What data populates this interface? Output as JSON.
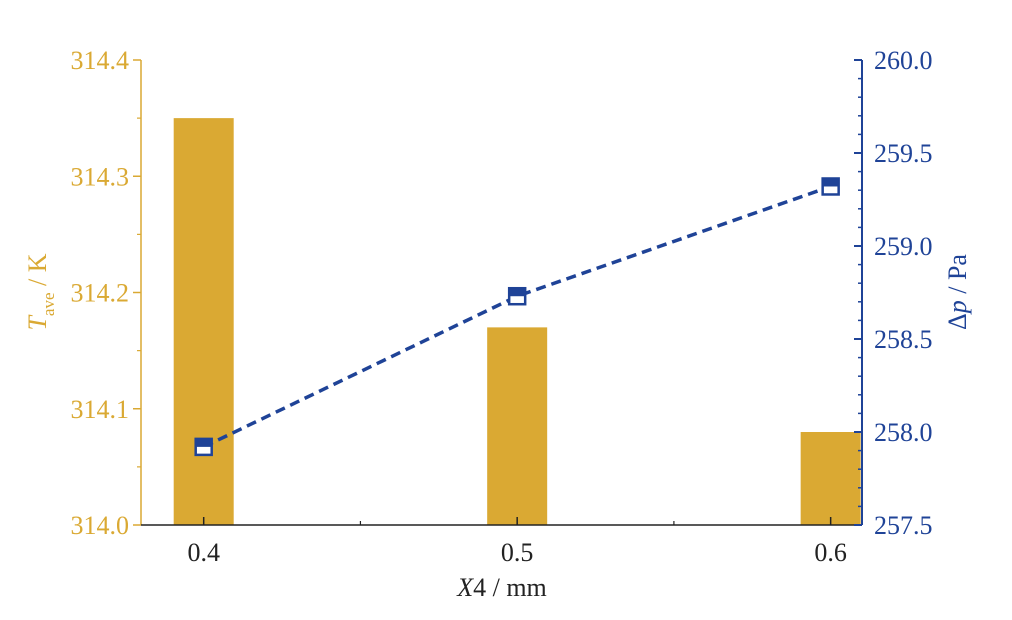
{
  "chart_data": {
    "type": "bar+line",
    "categories": [
      "0.4",
      "0.5",
      "0.6"
    ],
    "x": [
      0.4,
      0.5,
      0.6
    ],
    "bars": {
      "values": [
        314.35,
        314.17,
        314.08
      ],
      "color": "#DAA933",
      "axis": "left"
    },
    "line": {
      "values": [
        257.92,
        258.73,
        259.32
      ],
      "color": "#1F4397",
      "style": "dashed",
      "marker": "half-filled-square",
      "axis": "right"
    },
    "xlabel_var": "X",
    "xlabel_rest": "4 / mm",
    "xlim": [
      0.38,
      0.61
    ],
    "y_left": {
      "label_var": "T",
      "label_sub": "ave",
      "label_rest": " / K",
      "lim": [
        314.0,
        314.4
      ],
      "ticks": [
        "314.0",
        "314.1",
        "314.2",
        "314.3",
        "314.4"
      ],
      "color": "#DAA933"
    },
    "y_right": {
      "label_delta": "Δ",
      "label_var": "p",
      "label_rest": " / Pa",
      "lim": [
        257.5,
        260.0
      ],
      "ticks": [
        "257.5",
        "258.0",
        "258.5",
        "259.0",
        "259.5",
        "260.0"
      ],
      "color": "#1F4397"
    },
    "grid": false
  }
}
